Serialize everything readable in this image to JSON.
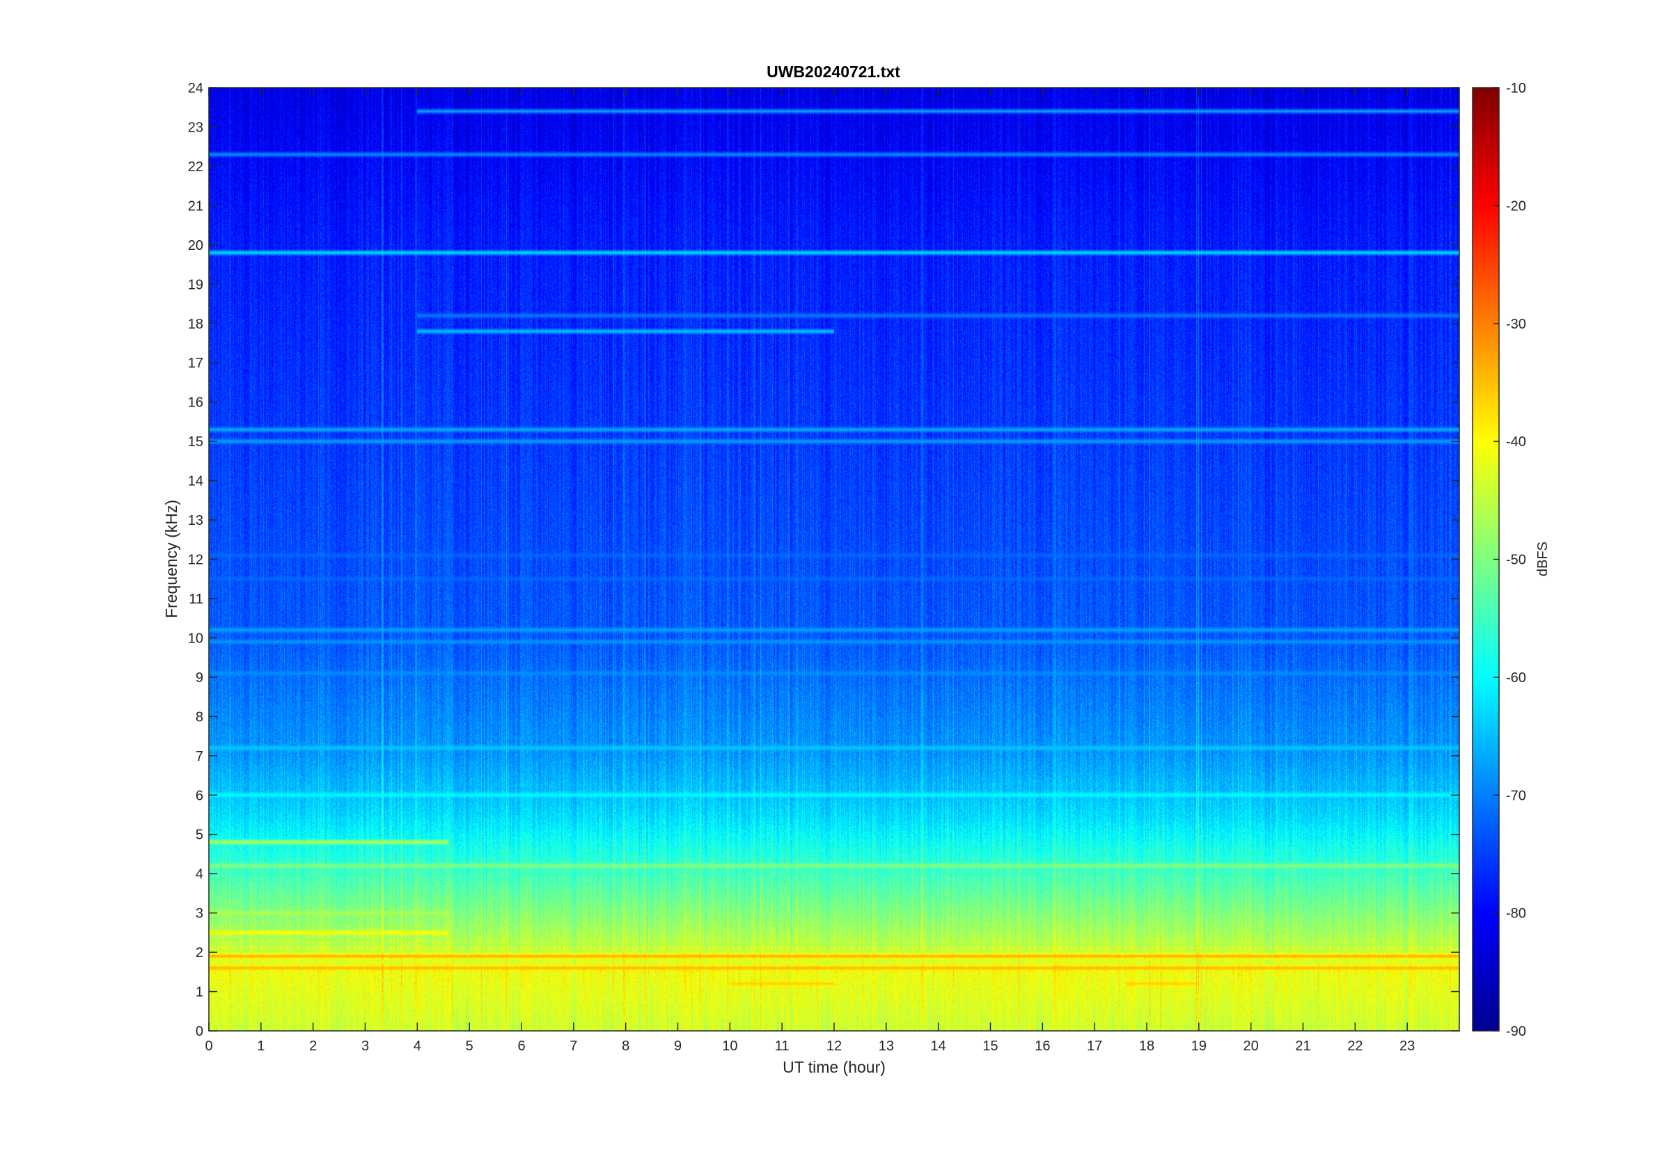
{
  "chart_data": {
    "type": "heatmap",
    "title": "UWB20240721.txt",
    "xlabel": "UT time (hour)",
    "ylabel": "Frequency (kHz)",
    "xlim": [
      0,
      24
    ],
    "ylim": [
      0,
      24
    ],
    "x_ticks": [
      0,
      1,
      2,
      3,
      4,
      5,
      6,
      7,
      8,
      9,
      10,
      11,
      12,
      13,
      14,
      15,
      16,
      17,
      18,
      19,
      20,
      21,
      22,
      23
    ],
    "y_ticks": [
      0,
      1,
      2,
      3,
      4,
      5,
      6,
      7,
      8,
      9,
      10,
      11,
      12,
      13,
      14,
      15,
      16,
      17,
      18,
      19,
      20,
      21,
      22,
      23,
      24
    ],
    "colorbar": {
      "label": "dBFS",
      "range": [
        -90,
        -10
      ],
      "ticks": [
        -10,
        -20,
        -30,
        -40,
        -50,
        -60,
        -70,
        -80,
        -90
      ],
      "colormap": "jet"
    },
    "background_profile": [
      {
        "freq_khz": 0.0,
        "dbfs": -44
      },
      {
        "freq_khz": 1.5,
        "dbfs": -41
      },
      {
        "freq_khz": 2.5,
        "dbfs": -47
      },
      {
        "freq_khz": 4.0,
        "dbfs": -55
      },
      {
        "freq_khz": 5.5,
        "dbfs": -63
      },
      {
        "freq_khz": 7.0,
        "dbfs": -68
      },
      {
        "freq_khz": 10.0,
        "dbfs": -73
      },
      {
        "freq_khz": 16.0,
        "dbfs": -76
      },
      {
        "freq_khz": 20.0,
        "dbfs": -78
      },
      {
        "freq_khz": 24.0,
        "dbfs": -82
      }
    ],
    "tone_lines": [
      {
        "freq_khz": 23.4,
        "dbfs": -66,
        "t_start": 4.0,
        "t_end": 24
      },
      {
        "freq_khz": 22.3,
        "dbfs": -68,
        "t_start": 0,
        "t_end": 24
      },
      {
        "freq_khz": 19.8,
        "dbfs": -62,
        "t_start": 0,
        "t_end": 24
      },
      {
        "freq_khz": 18.2,
        "dbfs": -70,
        "t_start": 4.0,
        "t_end": 24
      },
      {
        "freq_khz": 17.8,
        "dbfs": -64,
        "t_start": 4.0,
        "t_end": 12
      },
      {
        "freq_khz": 15.3,
        "dbfs": -66,
        "t_start": 0,
        "t_end": 24
      },
      {
        "freq_khz": 15.0,
        "dbfs": -67,
        "t_start": 0,
        "t_end": 24
      },
      {
        "freq_khz": 12.1,
        "dbfs": -72,
        "t_start": 0,
        "t_end": 24
      },
      {
        "freq_khz": 11.5,
        "dbfs": -72,
        "t_start": 0,
        "t_end": 24
      },
      {
        "freq_khz": 10.2,
        "dbfs": -67,
        "t_start": 0,
        "t_end": 24
      },
      {
        "freq_khz": 9.9,
        "dbfs": -68,
        "t_start": 0,
        "t_end": 24
      },
      {
        "freq_khz": 9.1,
        "dbfs": -69,
        "t_start": 0,
        "t_end": 24
      },
      {
        "freq_khz": 7.2,
        "dbfs": -64,
        "t_start": 0,
        "t_end": 24
      },
      {
        "freq_khz": 6.0,
        "dbfs": -60,
        "t_start": 0,
        "t_end": 24
      },
      {
        "freq_khz": 4.8,
        "dbfs": -45,
        "t_start": 0,
        "t_end": 4.6
      },
      {
        "freq_khz": 4.2,
        "dbfs": -49,
        "t_start": 0,
        "t_end": 24
      },
      {
        "freq_khz": 3.0,
        "dbfs": -46,
        "t_start": 0,
        "t_end": 4.6
      },
      {
        "freq_khz": 2.5,
        "dbfs": -40,
        "t_start": 0,
        "t_end": 4.6
      },
      {
        "freq_khz": 1.9,
        "dbfs": -33,
        "t_start": 0,
        "t_end": 24
      },
      {
        "freq_khz": 1.6,
        "dbfs": -34,
        "t_start": 0,
        "t_end": 24
      },
      {
        "freq_khz": 1.2,
        "dbfs": -36,
        "t_start": 10.0,
        "t_end": 12.0
      },
      {
        "freq_khz": 1.2,
        "dbfs": -36,
        "t_start": 17.6,
        "t_end": 19.0
      }
    ]
  }
}
